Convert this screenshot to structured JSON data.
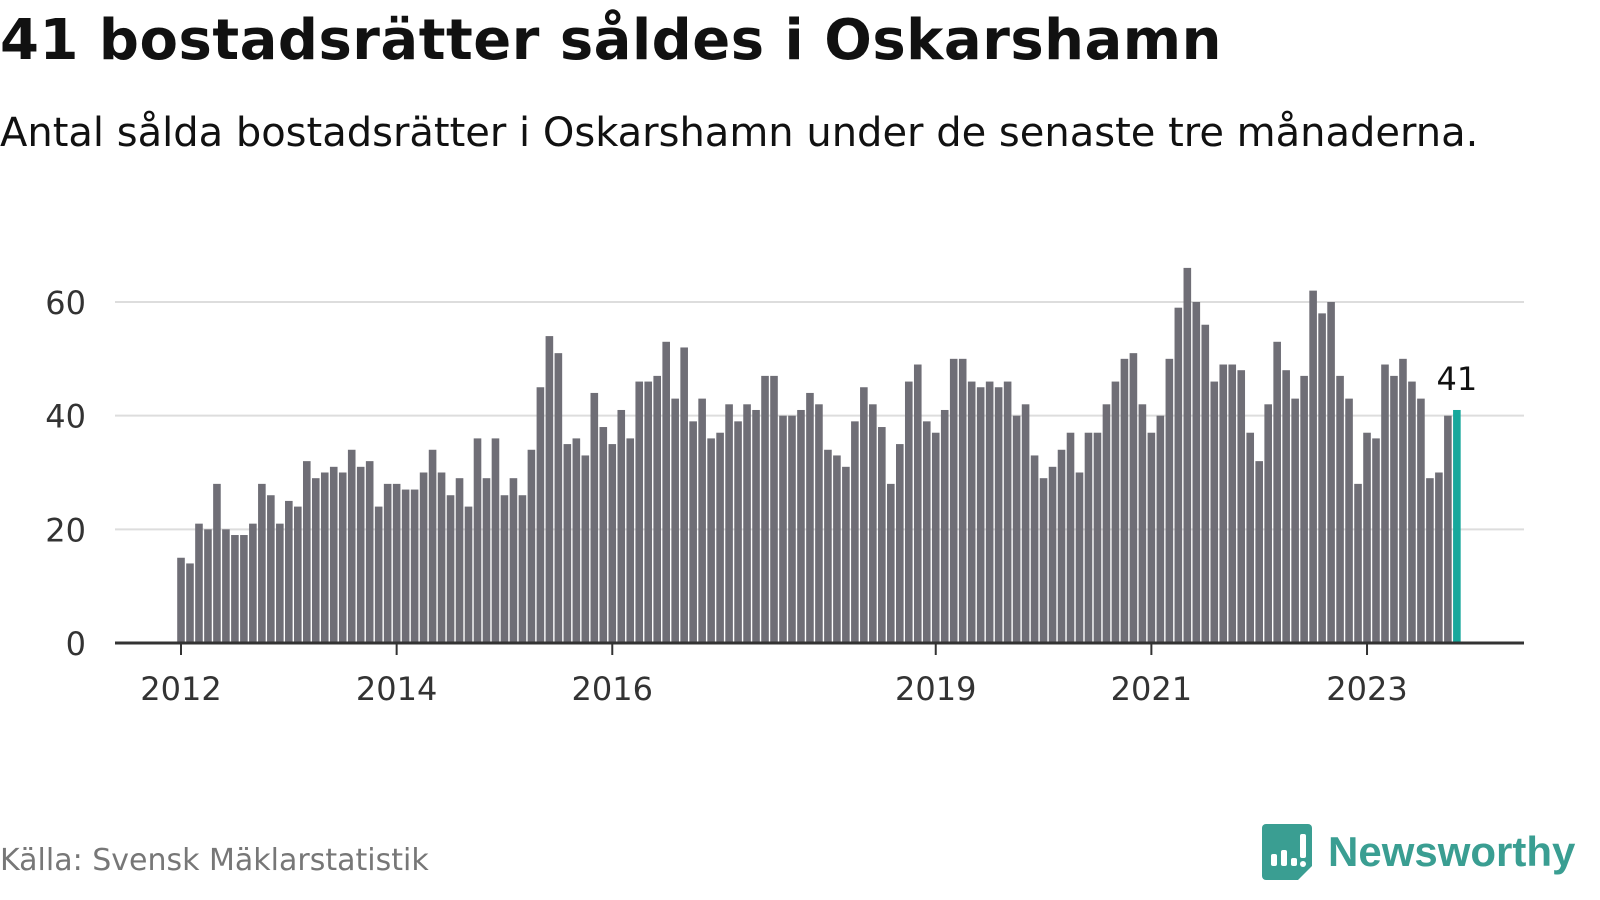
{
  "header": {
    "title": "41 bostadsrätter såldes i Oskarshamn",
    "subtitle": "Antal sålda bostadsrätter i Oskarshamn under de senaste tre månaderna."
  },
  "footer": {
    "source": "Källa: Svensk Mäklarstatistik",
    "logo_text": "Newsworthy"
  },
  "colors": {
    "bar": "#6f6e76",
    "highlight": "#17a89c",
    "grid": "#dddddd",
    "axis": "#333333",
    "logo": "#3a9e92"
  },
  "chart_data": {
    "type": "bar",
    "title": "41 bostadsrätter såldes i Oskarshamn",
    "xlabel": "",
    "ylabel": "",
    "ylim": [
      0,
      70
    ],
    "yticks": [
      0,
      20,
      40,
      60
    ],
    "grid": true,
    "start": "2012-01",
    "frequency": "monthly",
    "xtick_labels": [
      {
        "label": "2012",
        "index": 0
      },
      {
        "label": "2014",
        "index": 24
      },
      {
        "label": "2016",
        "index": 48
      },
      {
        "label": "2019",
        "index": 84
      },
      {
        "label": "2021",
        "index": 108
      },
      {
        "label": "2023",
        "index": 132
      }
    ],
    "values": [
      15,
      14,
      21,
      20,
      28,
      20,
      19,
      19,
      21,
      28,
      26,
      21,
      25,
      24,
      32,
      29,
      30,
      31,
      30,
      34,
      31,
      32,
      24,
      28,
      28,
      27,
      27,
      30,
      34,
      30,
      26,
      29,
      24,
      36,
      29,
      36,
      26,
      29,
      26,
      34,
      45,
      54,
      51,
      35,
      36,
      33,
      44,
      38,
      35,
      41,
      36,
      46,
      46,
      47,
      53,
      43,
      52,
      39,
      43,
      36,
      37,
      42,
      39,
      42,
      41,
      47,
      47,
      40,
      40,
      41,
      44,
      42,
      34,
      33,
      31,
      39,
      45,
      42,
      38,
      28,
      35,
      46,
      49,
      39,
      37,
      41,
      50,
      50,
      46,
      45,
      46,
      45,
      46,
      40,
      42,
      33,
      29,
      31,
      34,
      37,
      30,
      37,
      37,
      42,
      46,
      50,
      51,
      42,
      37,
      40,
      50,
      59,
      66,
      60,
      56,
      46,
      49,
      49,
      48,
      37,
      32,
      42,
      53,
      48,
      43,
      47,
      62,
      58,
      60,
      47,
      43,
      28,
      37,
      36,
      49,
      47,
      50,
      46,
      43,
      29,
      30,
      40,
      41
    ],
    "highlight_label": "41"
  }
}
